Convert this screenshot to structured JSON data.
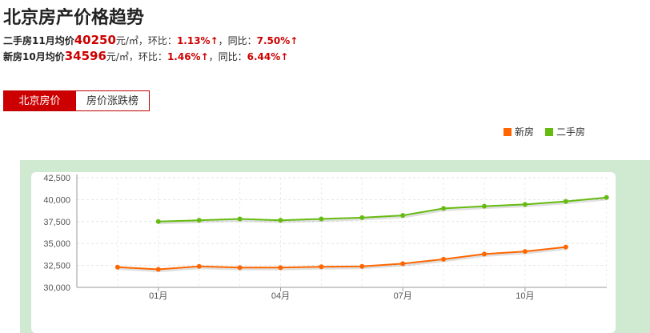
{
  "title": "北京房产价格趋势",
  "stats": {
    "second_hand": {
      "label": "二手房11月均价",
      "price": "40250",
      "unit": "元/㎡，环比：",
      "mom": "1.13%↑",
      "yoy_label": "，同比：",
      "yoy": "7.50%↑"
    },
    "new_home": {
      "label": "新房10月均价",
      "price": "34596",
      "unit": "元/㎡，环比：",
      "mom": "1.46%↑",
      "yoy_label": "，同比：",
      "yoy": "6.44%↑"
    }
  },
  "tabs": [
    "北京房价",
    "房价涨跌榜"
  ],
  "colors": {
    "new": "#ff6600",
    "second": "#66bb11",
    "accent": "#cc0000",
    "panel": "#d0ead2"
  },
  "chart_data": {
    "type": "line",
    "title": "",
    "xlabel": "",
    "ylabel": "",
    "ylim": [
      30000,
      42500
    ],
    "y_ticks": [
      "30,000",
      "32,500",
      "35,000",
      "37,500",
      "40,000",
      "42,500"
    ],
    "x_tick_labels": [
      "01月",
      "04月",
      "07月",
      "10月"
    ],
    "x_tick_index": [
      2,
      5,
      8,
      11
    ],
    "legend_position": "top-right",
    "grid": true,
    "series": [
      {
        "name": "新房",
        "color": "#ff6600",
        "values": [
          32300,
          32050,
          32400,
          32250,
          32250,
          32350,
          32400,
          32700,
          33200,
          33800,
          34100,
          34596,
          null
        ]
      },
      {
        "name": "二手房",
        "color": "#66bb11",
        "values": [
          null,
          37500,
          37650,
          37800,
          37650,
          37800,
          37950,
          38200,
          39000,
          39250,
          39450,
          39800,
          40250
        ]
      }
    ]
  }
}
